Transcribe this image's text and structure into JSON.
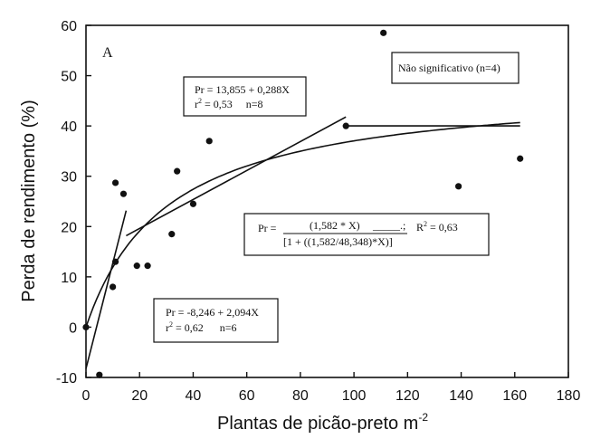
{
  "chart_data": {
    "type": "scatter",
    "panel_label": "A",
    "xlabel": "Plantas de picão-preto m",
    "xlabel_sup": "-2",
    "ylabel": "Perda de rendimento (%)",
    "xlim": [
      0,
      180
    ],
    "ylim": [
      -10,
      60
    ],
    "x_ticks": [
      0,
      20,
      40,
      60,
      80,
      100,
      120,
      140,
      160,
      180
    ],
    "y_ticks": [
      -10,
      0,
      10,
      20,
      30,
      40,
      50,
      60
    ],
    "points": [
      {
        "x": 0,
        "y": 0
      },
      {
        "x": 5,
        "y": -9.5
      },
      {
        "x": 10,
        "y": 8
      },
      {
        "x": 11,
        "y": 13
      },
      {
        "x": 11,
        "y": 28.7
      },
      {
        "x": 14,
        "y": 26.5
      },
      {
        "x": 19,
        "y": 12.2
      },
      {
        "x": 23,
        "y": 12.2
      },
      {
        "x": 32,
        "y": 18.5
      },
      {
        "x": 34,
        "y": 31
      },
      {
        "x": 40,
        "y": 24.5
      },
      {
        "x": 46,
        "y": 37
      },
      {
        "x": 97,
        "y": 40
      },
      {
        "x": 111,
        "y": 58.5
      },
      {
        "x": 139,
        "y": 28
      },
      {
        "x": 162,
        "y": 33.5
      }
    ],
    "fits": [
      {
        "kind": "linear",
        "intercept": -8.246,
        "slope": 2.094,
        "x_range": [
          0,
          15
        ]
      },
      {
        "kind": "linear",
        "intercept": 13.855,
        "slope": 0.288,
        "x_range": [
          15,
          97
        ]
      },
      {
        "kind": "hyperbolic",
        "i": 1.582,
        "a": 48.348,
        "x_range": [
          0,
          162
        ]
      },
      {
        "kind": "constant",
        "value": 40,
        "x_range": [
          97,
          162
        ]
      }
    ],
    "annotations": {
      "eq1_line1": "Pr = 13,855 + 0,288X",
      "eq1_line2": "r",
      "eq1_line2_sup": "2",
      "eq1_line2_rest": " = 0,53     n=8",
      "eq2_prefix": "Pr = ",
      "eq2_numerator": "(1,582 * X)",
      "eq2_numerator_tail": "_____.;",
      "eq2_r": "R",
      "eq2_r_sup": "2",
      "eq2_r_rest": " = 0,63",
      "eq2_denominator": "[1 + ((1,582/48,348)*X)]",
      "eq3_line1": "Pr = -8,246 + 2,094X",
      "eq3_line2": "r",
      "eq3_line2_sup": "2",
      "eq3_line2_rest": " = 0,62      n=6",
      "ns_note": "Não significativo (n=4)"
    }
  }
}
